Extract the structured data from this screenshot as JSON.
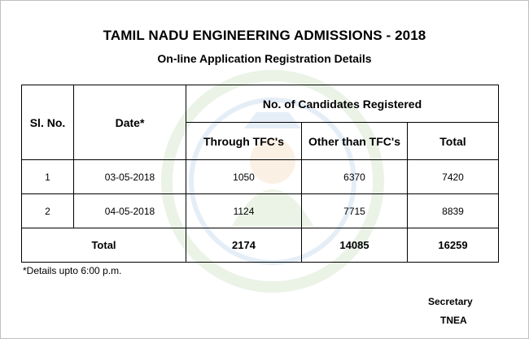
{
  "header": {
    "title": "TAMIL NADU ENGINEERING ADMISSIONS - 2018",
    "subtitle": "On-line Application Registration Details"
  },
  "table": {
    "col_slno": "Sl. No.",
    "col_date": "Date*",
    "col_group": "No. of Candidates Registered",
    "col_through": "Through TFC's",
    "col_other": "Other than TFC's",
    "col_total": "Total",
    "rows": [
      {
        "slno": "1",
        "date": "03-05-2018",
        "through": "1050",
        "other": "6370",
        "total": "7420"
      },
      {
        "slno": "2",
        "date": "04-05-2018",
        "through": "1124",
        "other": "7715",
        "total": "8839"
      }
    ],
    "total_row": {
      "label": "Total",
      "through": "2174",
      "other": "14085",
      "total": "16259"
    }
  },
  "footnote": "*Details upto 6:00 p.m.",
  "signature": {
    "line1": "Secretary",
    "line2": "TNEA"
  }
}
